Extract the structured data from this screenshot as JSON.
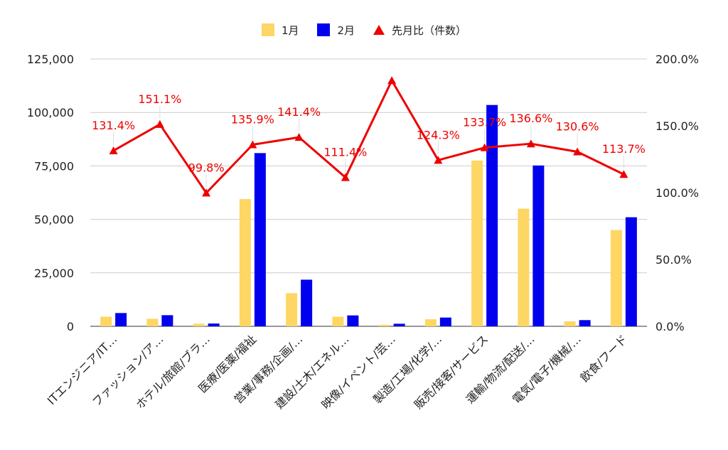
{
  "chart_data": {
    "type": "bar",
    "categories": [
      "ITエンジニア/IT…",
      "ファッション/ア…",
      "ホテル/旅館/ブラ…",
      "医療/医薬/福祉",
      "営業/事務/企画/…",
      "建設/土木/エネル…",
      "映像/イベント/芸…",
      "製造/工場/化学/…",
      "販売/接客/サービス",
      "運輸/物流/配送/…",
      "電気/電子/機械/…",
      "飲食/フード"
    ],
    "series": [
      {
        "name": "1月",
        "axis": "left",
        "type": "bar",
        "color": "#fdd663",
        "values": [
          4500,
          3500,
          1200,
          59500,
          15500,
          4500,
          700,
          3300,
          77500,
          55000,
          2300,
          45000
        ]
      },
      {
        "name": "2月",
        "axis": "left",
        "type": "bar",
        "color": "#0000ee",
        "values": [
          6200,
          5200,
          1300,
          81000,
          21800,
          5100,
          1200,
          4100,
          103500,
          75200,
          2900,
          51000
        ]
      },
      {
        "name": "先月比（件数）",
        "axis": "right",
        "type": "line",
        "marker": "triangle",
        "color": "#ee0000",
        "values": [
          131.4,
          151.1,
          99.8,
          135.9,
          141.4,
          111.4,
          183.9,
          124.3,
          133.7,
          136.6,
          130.6,
          113.7
        ],
        "labels": [
          "131.4%",
          "151.1%",
          "99.8%",
          "135.9%",
          "141.4%",
          "111.4%",
          "",
          "124.3%",
          "133.7%",
          "136.6%",
          "130.6%",
          "113.7%"
        ]
      }
    ],
    "y_left": {
      "min": 0,
      "max": 125000,
      "ticks": [
        "0",
        "25,000",
        "50,000",
        "75,000",
        "100,000",
        "125,000"
      ]
    },
    "y_right": {
      "min": 0,
      "max": 200,
      "ticks": [
        "0.0%",
        "50.0%",
        "100.0%",
        "150.0%",
        "200.0%"
      ]
    },
    "grid": true,
    "legend_position": "top"
  }
}
